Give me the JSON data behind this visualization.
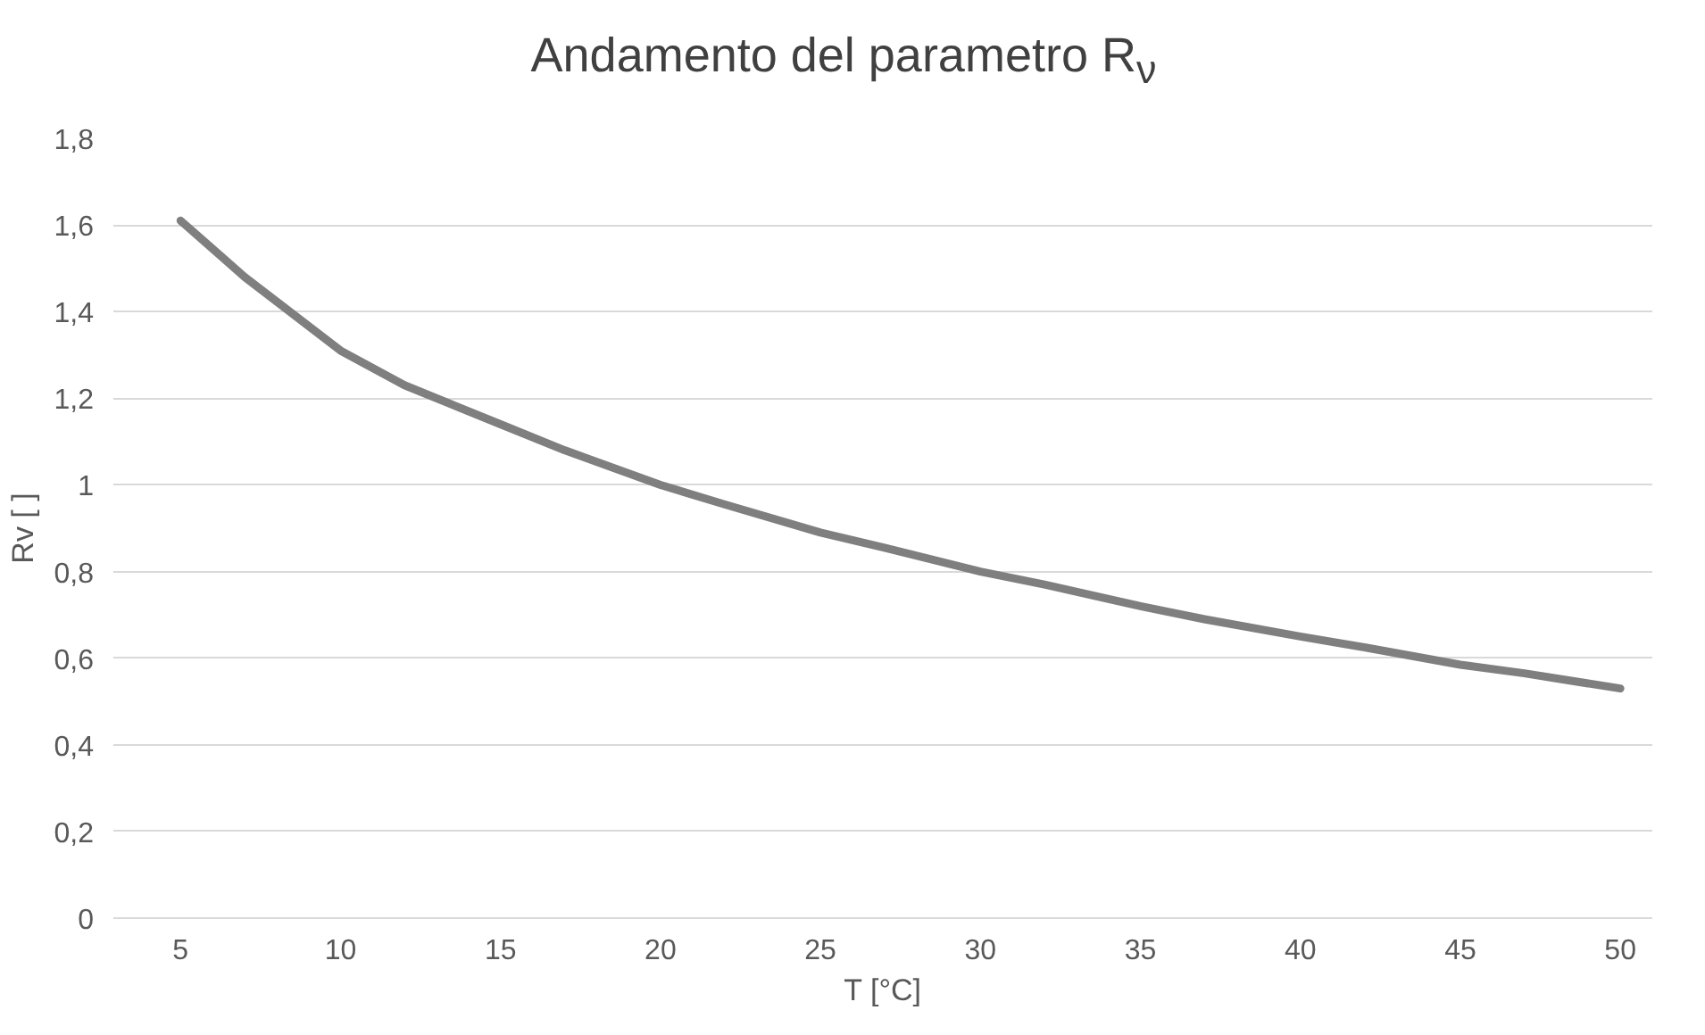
{
  "chart_data": {
    "type": "line",
    "title": "Andamento del parametro R$_{ν}$",
    "xlabel": "T [°C]",
    "ylabel": "Rv [ ]",
    "x": [
      5,
      7,
      10,
      12,
      15,
      17,
      20,
      22,
      25,
      27,
      30,
      32,
      35,
      37,
      40,
      42,
      45,
      47,
      50
    ],
    "series": [
      {
        "color": "#7f7f7f",
        "values": [
          1.61,
          1.48,
          1.31,
          1.23,
          1.14,
          1.08,
          1.0,
          0.955,
          0.89,
          0.855,
          0.8,
          0.77,
          0.72,
          0.69,
          0.65,
          0.625,
          0.585,
          0.565,
          0.53
        ]
      }
    ],
    "xlim": [
      2.9,
      51
    ],
    "xticks": [
      5,
      10,
      15,
      20,
      25,
      30,
      35,
      40,
      45,
      50
    ],
    "ylim": [
      0,
      1.8
    ],
    "yticks": [
      0,
      {
        "value": 0.2,
        "label": "0,2"
      },
      {
        "value": 0.4,
        "label": "0,4"
      },
      {
        "value": 0.6,
        "label": "0,6"
      },
      {
        "value": 0.8,
        "label": "0,8"
      },
      1,
      {
        "value": 1.2,
        "label": "1,2"
      },
      {
        "value": 1.4,
        "label": "1,4"
      },
      {
        "value": 1.6,
        "label": "1,6"
      },
      {
        "value": 1.8,
        "label": "1,8"
      }
    ],
    "grid": "y",
    "marker": "none",
    "line_style": "solid"
  }
}
